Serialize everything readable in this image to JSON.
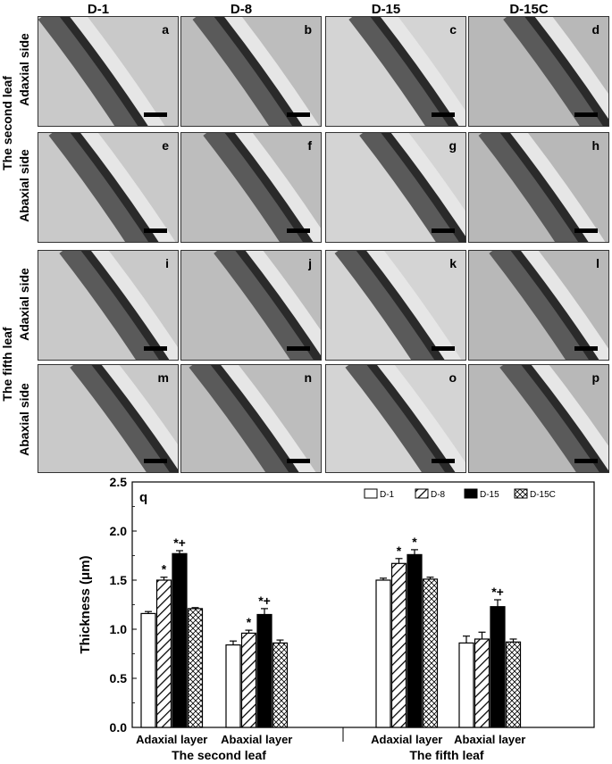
{
  "columns": [
    "D-1",
    "D-8",
    "D-15",
    "D-15C"
  ],
  "groups": [
    {
      "label": "The second leaf",
      "rows": [
        "Adaxial side",
        "Abaxial side"
      ]
    },
    {
      "label": "The fifth leaf",
      "rows": [
        "Adaxial side",
        "Abaxial side"
      ]
    }
  ],
  "panels": [
    "a",
    "b",
    "c",
    "d",
    "e",
    "f",
    "g",
    "h",
    "i",
    "j",
    "k",
    "l",
    "m",
    "n",
    "o",
    "p"
  ],
  "chart_data": {
    "type": "bar",
    "panel_letter": "q",
    "ylabel": "Thickness  (μm)",
    "ylim": [
      0.0,
      2.5
    ],
    "yticks": [
      "0.0",
      "0.5",
      "1.0",
      "1.5",
      "2.0",
      "2.5"
    ],
    "group_labels": [
      "The second leaf",
      "The fifth leaf"
    ],
    "categories": [
      "Adaxial  layer",
      "Abaxial  layer",
      "Adaxial  layer",
      "Abaxial  layer"
    ],
    "series": [
      {
        "name": "D-1",
        "pattern": "white",
        "values": [
          1.16,
          0.84,
          1.5,
          0.86
        ],
        "errors": [
          0.02,
          0.04,
          0.02,
          0.07
        ],
        "marks": [
          "",
          "",
          "",
          ""
        ]
      },
      {
        "name": "D-8",
        "pattern": "hatch",
        "values": [
          1.5,
          0.96,
          1.67,
          0.9
        ],
        "errors": [
          0.03,
          0.03,
          0.05,
          0.07
        ],
        "marks": [
          "*",
          "*",
          "*",
          ""
        ]
      },
      {
        "name": "D-15",
        "pattern": "black",
        "values": [
          1.77,
          1.15,
          1.76,
          1.23
        ],
        "errors": [
          0.03,
          0.06,
          0.05,
          0.07
        ],
        "marks": [
          "*+",
          "*+",
          "*",
          "*+"
        ]
      },
      {
        "name": "D-15C",
        "pattern": "cross",
        "values": [
          1.21,
          0.86,
          1.51,
          0.87
        ],
        "errors": [
          0.01,
          0.03,
          0.02,
          0.03
        ],
        "marks": [
          "",
          "",
          "",
          ""
        ]
      }
    ],
    "legend_position": "top-right"
  }
}
